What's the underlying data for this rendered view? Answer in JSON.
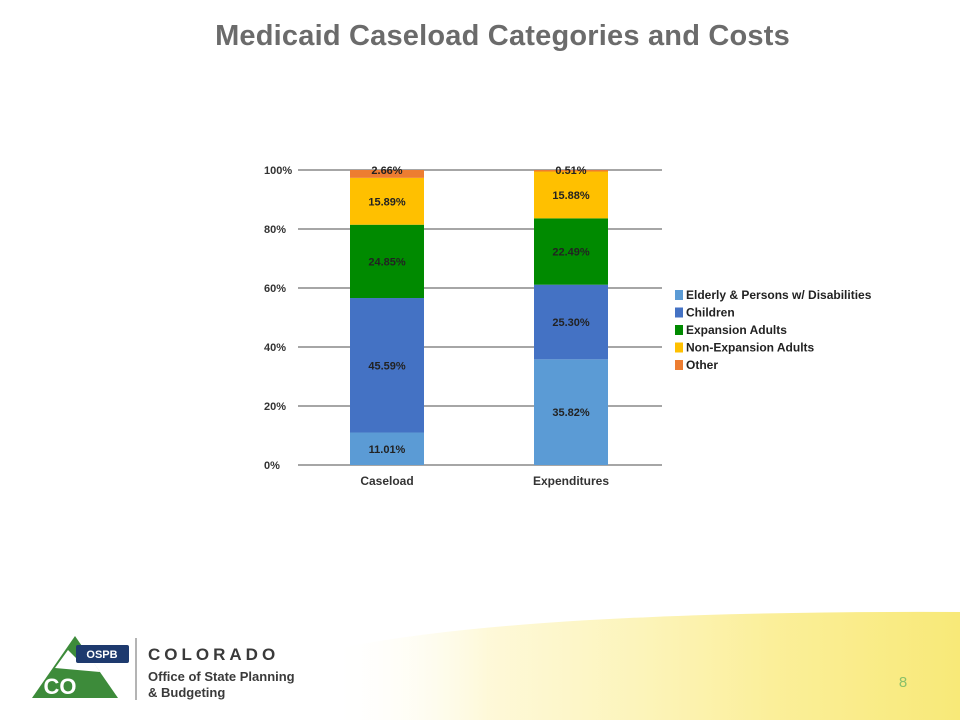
{
  "slide": {
    "title": "Medicaid Caseload Categories and Costs",
    "page_number": "8"
  },
  "footer": {
    "logo_badge": "OSPB",
    "logo_state": "CO",
    "org_name": "COLORADO",
    "office_line1": "Office of State Planning",
    "office_line2": "& Budgeting"
  },
  "chart_data": {
    "type": "bar",
    "stacked": true,
    "categories": [
      "Caseload",
      "Expenditures"
    ],
    "ylim": [
      0,
      100
    ],
    "y_ticks": [
      "0%",
      "20%",
      "40%",
      "60%",
      "80%",
      "100%"
    ],
    "grid": true,
    "legend_position": "right",
    "series": [
      {
        "name": "Elderly & Persons w/ Disabilities",
        "color": "#5b9bd5",
        "values": [
          11.01,
          35.82
        ],
        "labels": [
          "11.01%",
          "35.82%"
        ]
      },
      {
        "name": "Children",
        "color": "#4472c4",
        "values": [
          45.59,
          25.3
        ],
        "labels": [
          "45.59%",
          "25.30%"
        ]
      },
      {
        "name": "Expansion Adults",
        "color": "#008a00",
        "values": [
          24.85,
          22.49
        ],
        "labels": [
          "24.85%",
          "22.49%"
        ]
      },
      {
        "name": "Non-Expansion Adults",
        "color": "#ffc000",
        "values": [
          15.89,
          15.88
        ],
        "labels": [
          "15.89%",
          "15.88%"
        ]
      },
      {
        "name": "Other",
        "color": "#ed7d31",
        "values": [
          2.66,
          0.51
        ],
        "labels": [
          "2.66%",
          "0.51%"
        ]
      }
    ]
  }
}
